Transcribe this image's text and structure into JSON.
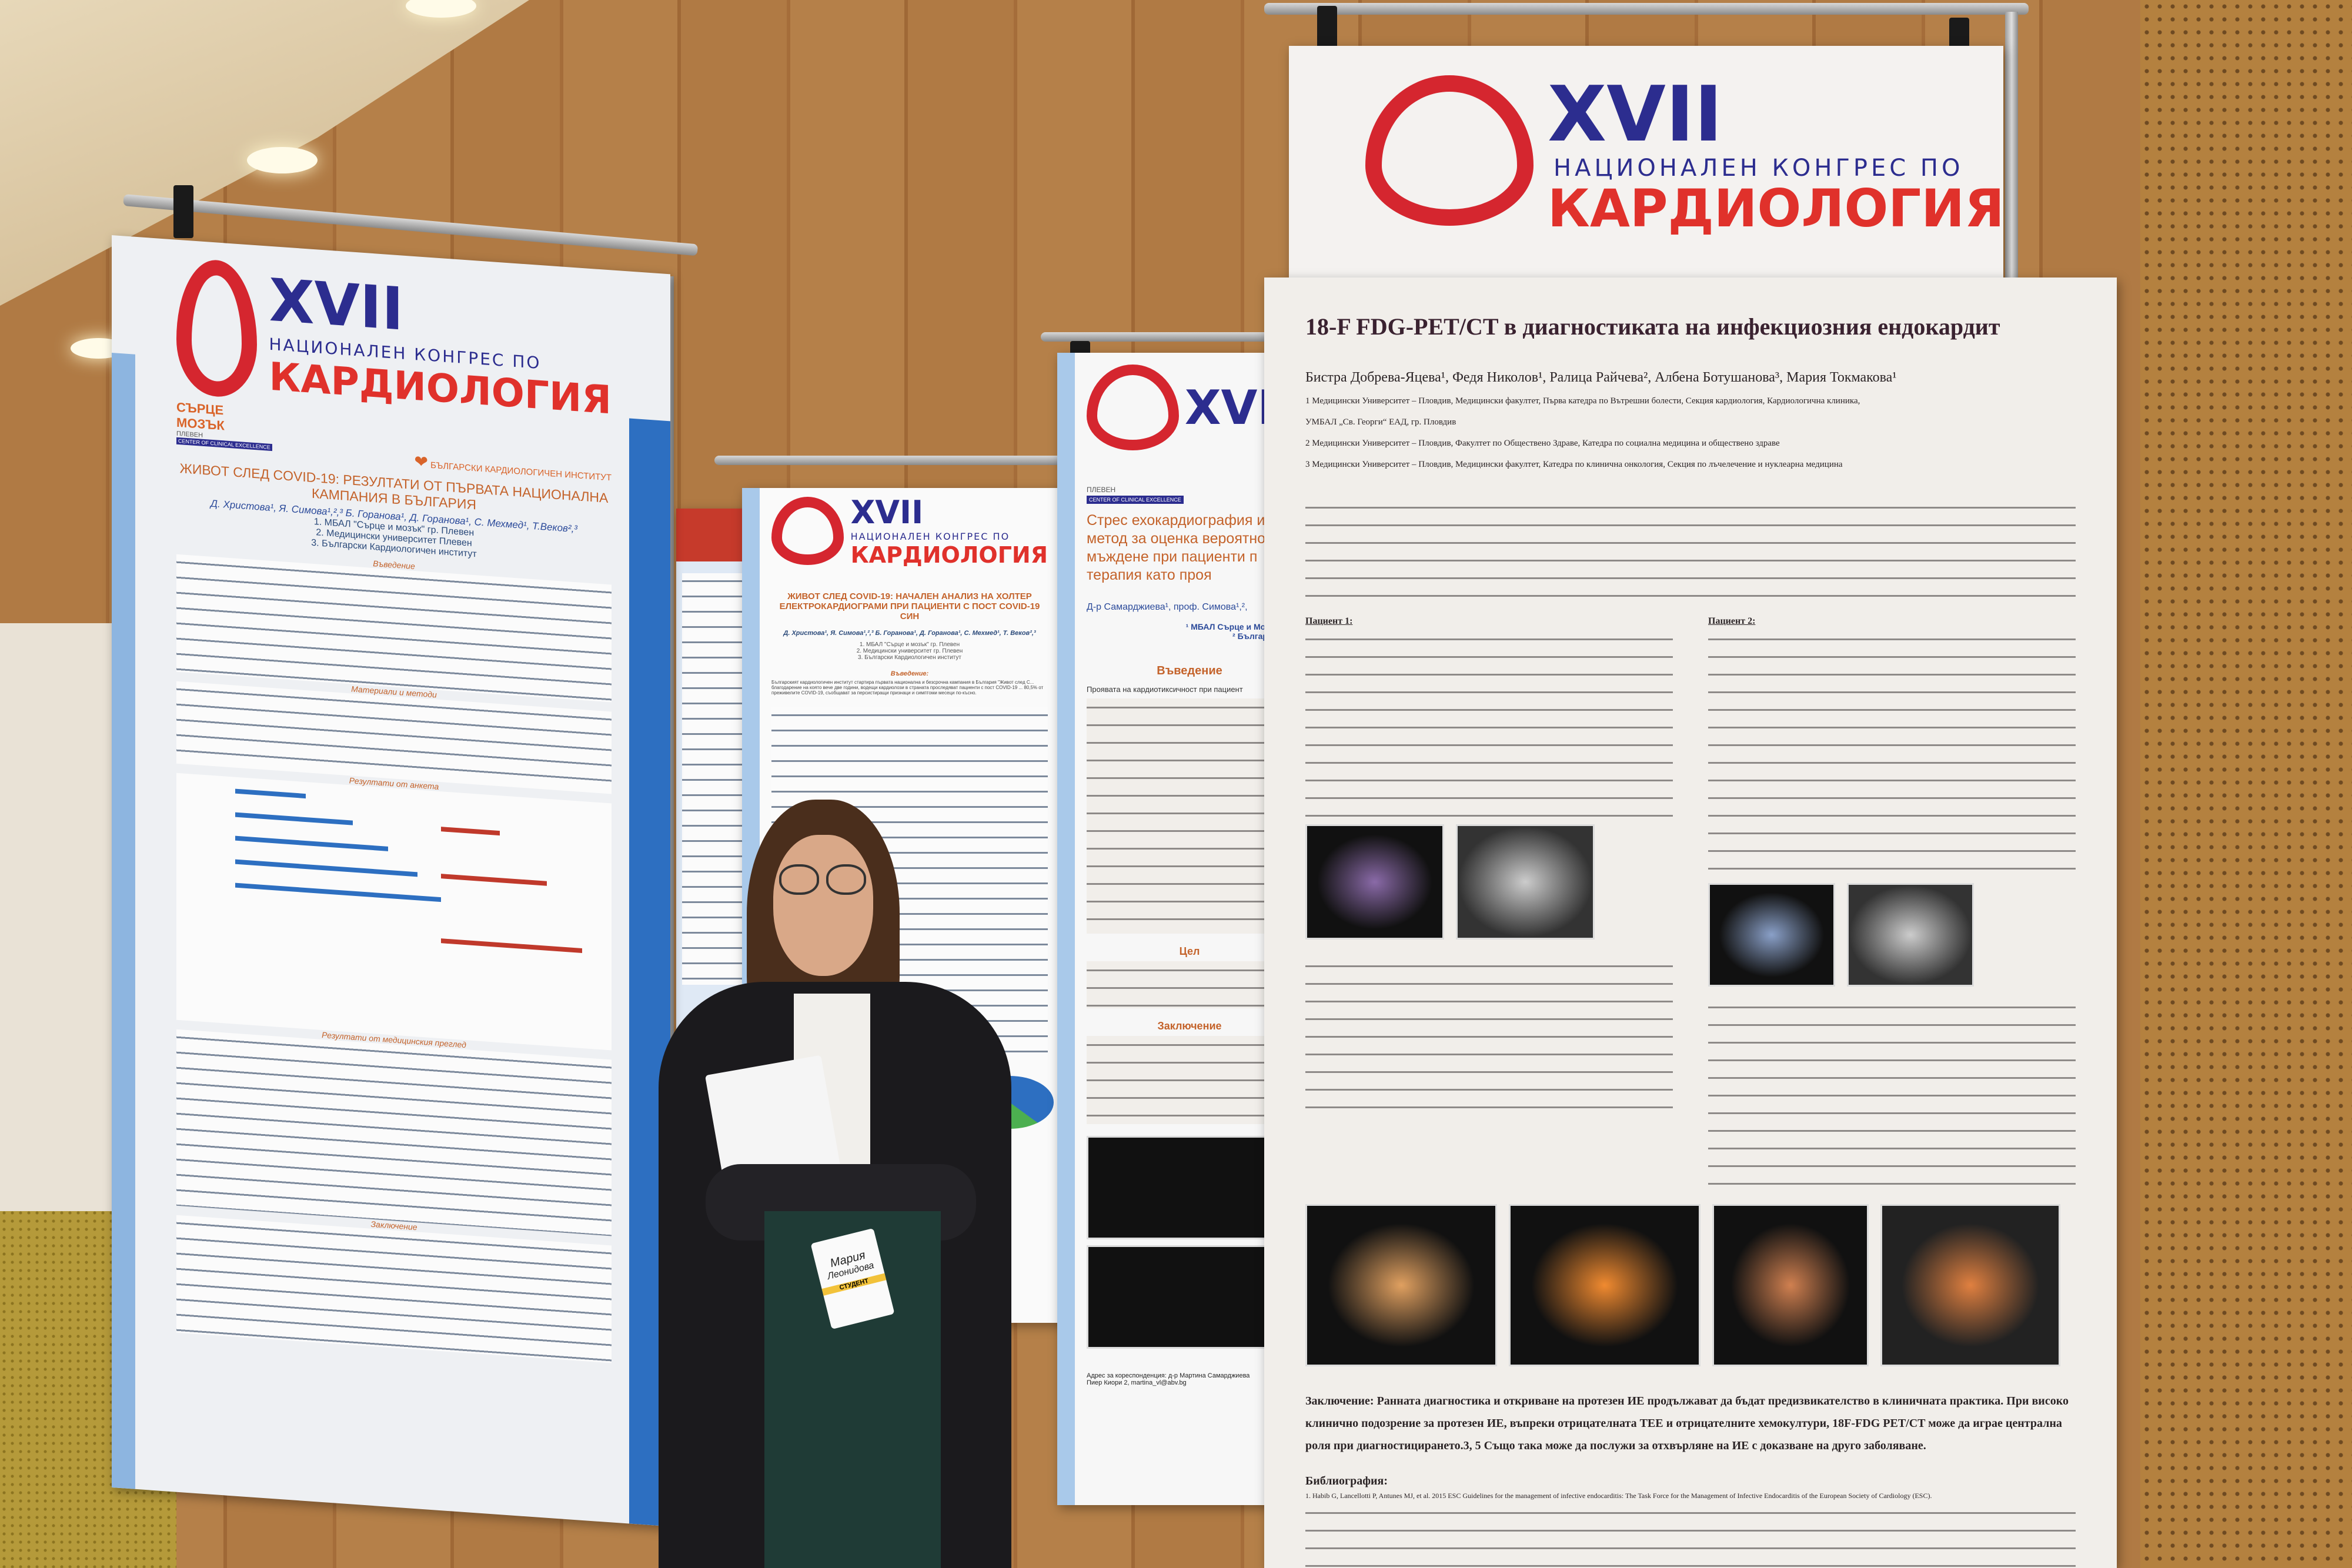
{
  "scene": {
    "colors": {
      "wall": "#b07a44",
      "poster_paper": "#f1eeea",
      "congress_blue": "#2c2d8f",
      "congress_red": "#e0312b",
      "poster_blue": "#2d6fc1",
      "jacket": "#1b1a1d",
      "pants": "#1f3b36"
    }
  },
  "congress_logo": {
    "number": "XVII",
    "line1": "НАЦИОНАЛЕН КОНГРЕС ПО",
    "line2": "КАРДИОЛОГИЯ",
    "icon": "heart-ecg-icon"
  },
  "poster_left": {
    "org_logo": {
      "line1": "СЪРЦЕ",
      "line2": "МОЗЪК",
      "city": "ПЛЕВЕН",
      "tagline": "CENTER OF CLINICAL EXCELLENCE"
    },
    "institute": "БЪЛГАРСКИ КАРДИОЛОГИЧЕН ИНСТИТУТ",
    "title": "ЖИВОТ СЛЕД COVID-19: РЕЗУЛТАТИ ОТ ПЪРВАТА НАЦИОНАЛНА КАМПАНИЯ В БЪЛГАРИЯ",
    "authors": "Д. Христова¹, Я. Симова¹,²,³ Б. Горанова¹, Д. Горанова¹, С. Мехмед¹, Т.Веков²,³",
    "affiliations": [
      "1. МБАЛ \"Сърце и мозък\" гр. Плевен",
      "2. Медицински университет Плевен",
      "3. Български Кардиологичен институт"
    ],
    "sections": [
      "Въведение",
      "Материали и методи",
      "Резултати от анкета",
      "Резултати от медицинския преглед",
      "Заключение"
    ]
  },
  "poster_middle": {
    "title": "ЖИВОТ СЛЕД COVID-19: НАЧАЛЕН АНАЛИЗ НА ХОЛТЕР ЕЛЕКТРОКАРДИОГРАМИ ПРИ ПАЦИЕНТИ С ПОСТ COVID-19 СИН",
    "authors": "Д. Христова¹, Я. Симова¹,²,³ Б. Горанова¹, Д. Горанова¹, С. Мехмед¹, Т. Веков²,³",
    "affiliations": [
      "1. МБАЛ \"Сърце и мозък\" гр. Плевен",
      "2. Медицински университет гр. Плевен",
      "3. Български Кардиологичен институт"
    ],
    "intro_heading": "Въведение:",
    "intro_text": "Българският кардиологичен институт стартира първата национална и безсрочна кампания в България \"Живот след С... благодарение на която вече две години, водещи кардиолози в страната проследяват пациенти с пост COVID-19 ... 80,5% от преживелите COVID-19, съобщават за персистиращи признаци и симптоми месеци по-късно."
  },
  "poster_stress": {
    "org_city": "ПЛЕВЕН",
    "org_tagline": "CENTER OF CLINICAL EXCELLENCE",
    "title_lines": [
      "Стрес ехокардиография и",
      "метод за оценка вероятно",
      "мъждене при пациенти п",
      "терапия като проя"
    ],
    "authors": "Д-р Самарджиева¹, проф. Симова¹,²,",
    "affiliations": [
      "¹ МБАЛ Сърце и Мозък гр.",
      "² Български ка"
    ],
    "intro_heading": "Въведение",
    "intro_text": "Проявата на кардиотиксичност при пациент",
    "goal_heading": "Цел",
    "conclusion_heading": "Заключение",
    "contact": "Адрес за кореспонденция: д-р Мартина Самарджиева",
    "contact2": "Пиер Киори 2, martina_vl@abv.bg"
  },
  "poster_right": {
    "title": "18-F FDG-PET/CT в диагностиката на инфекциозния ендокардит",
    "authors": "Бистра Добрева-Яцева¹, Федя Николов¹, Ралица Райчева², Албена Ботушанова³, Мария Токмакова¹",
    "affiliations": [
      "1 Медицински Университет – Пловдив, Медицински факултет, Първа катедра по Вътрешни болести, Секция кардиология, Кардиологична клиника,",
      "УМБАЛ „Св. Георги“ ЕАД, гр. Пловдив",
      "2 Медицински Университет – Пловдив, Факултет по Обществено Здраве, Катедра по социална медицина и обществено здраве",
      "3 Медицински Университет – Пловдив, Медицински факултет, Катедра по клинична онкология, Секция по лъчелечение и нуклеарна медицина"
    ],
    "patient1": "Пациент 1:",
    "patient2": "Пациент 2:",
    "conclusion": "Заключение: Ранната диагностика и откриване на протезен ИЕ продължават да бъдат предизвикателство в клиничната практика. При високо клинично подозрение за протезен ИЕ, въпреки отрицателната ТЕЕ и отрицателните хемокултури, 18F-FDG PET/CT може да играе централна роля при диагностицирането.3, 5 Също така може да послужи за отхвърляне на ИЕ с доказване на друго заболяване.",
    "bibliography_heading": "Библиография:",
    "bibliography_first": "1. Habib G, Lancellotti P, Antunes MJ, et al. 2015 ESC Guidelines for the management of infective endocarditis: The Task Force for the Management of Infective Endocarditis of the European Society of Cardiology (ESC)."
  },
  "badge": {
    "name_line1": "Мария",
    "name_line2": "Леонидова",
    "role": "СТУДЕНТ"
  }
}
